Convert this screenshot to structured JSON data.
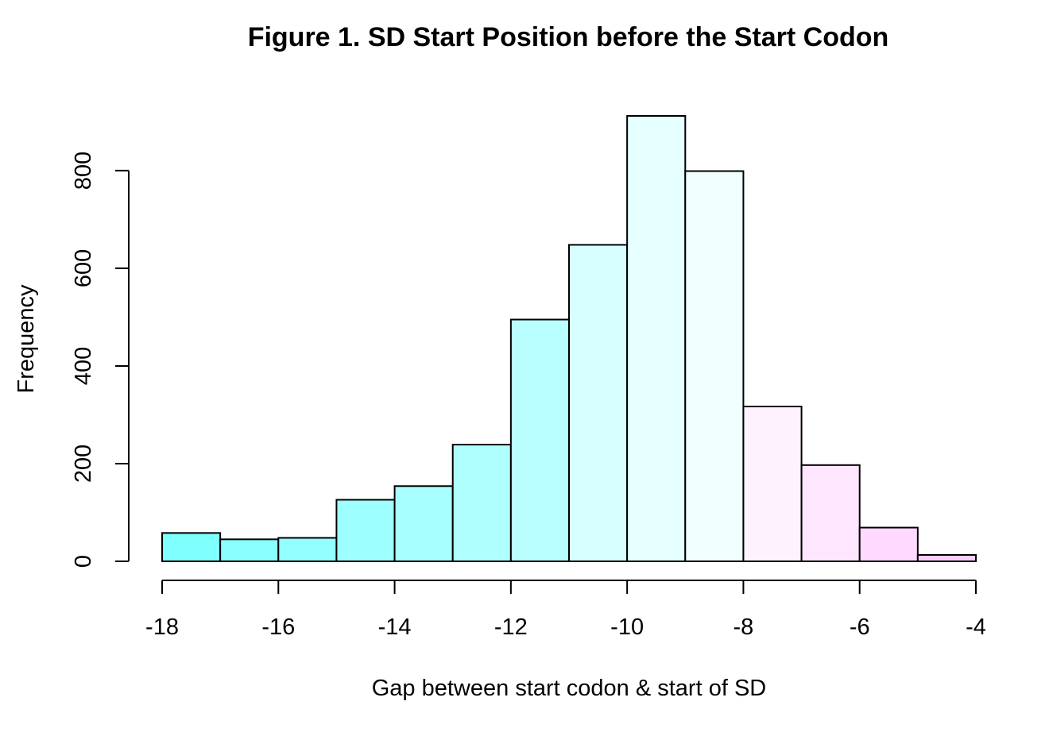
{
  "chart_data": {
    "type": "bar",
    "subtype": "histogram",
    "title": "Figure 1. SD Start Position before the Start Codon",
    "xlabel": "Gap between start codon & start of SD",
    "ylabel": "Frequency",
    "bins": [
      {
        "x0": -18,
        "x1": -17,
        "value": 58,
        "color": "#80FFFF"
      },
      {
        "x0": -17,
        "x1": -16,
        "value": 45,
        "color": "#8AFFFF"
      },
      {
        "x0": -16,
        "x1": -15,
        "value": 48,
        "color": "#93FFFF"
      },
      {
        "x0": -15,
        "x1": -14,
        "value": 126,
        "color": "#9DFFFF"
      },
      {
        "x0": -14,
        "x1": -13,
        "value": 154,
        "color": "#A7FFFF"
      },
      {
        "x0": -13,
        "x1": -12,
        "value": 239,
        "color": "#B0FFFF"
      },
      {
        "x0": -12,
        "x1": -11,
        "value": 495,
        "color": "#BAFFFF"
      },
      {
        "x0": -11,
        "x1": -10,
        "value": 648,
        "color": "#D7FFFF"
      },
      {
        "x0": -10,
        "x1": -9,
        "value": 912,
        "color": "#E6FFFF"
      },
      {
        "x0": -9,
        "x1": -8,
        "value": 799,
        "color": "#F2FFFF"
      },
      {
        "x0": -8,
        "x1": -7,
        "value": 317,
        "color": "#FFF2FF"
      },
      {
        "x0": -7,
        "x1": -6,
        "value": 197,
        "color": "#FFE6FF"
      },
      {
        "x0": -6,
        "x1": -5,
        "value": 69,
        "color": "#FFD9FF"
      },
      {
        "x0": -5,
        "x1": -4,
        "value": 13,
        "color": "#FFCCFF"
      }
    ],
    "xlim": [
      -18,
      -4
    ],
    "ylim": [
      0,
      912
    ],
    "x_ticks": [
      -18,
      -16,
      -14,
      -12,
      -10,
      -8,
      -6,
      -4
    ],
    "x_tick_labels": [
      "-18",
      "-16",
      "-14",
      "-12",
      "-10",
      "-8",
      "-6",
      "-4"
    ],
    "y_ticks": [
      0,
      200,
      400,
      600,
      800
    ],
    "y_tick_labels": [
      "0",
      "200",
      "400",
      "600",
      "800"
    ],
    "grid": false,
    "legend": "none"
  }
}
